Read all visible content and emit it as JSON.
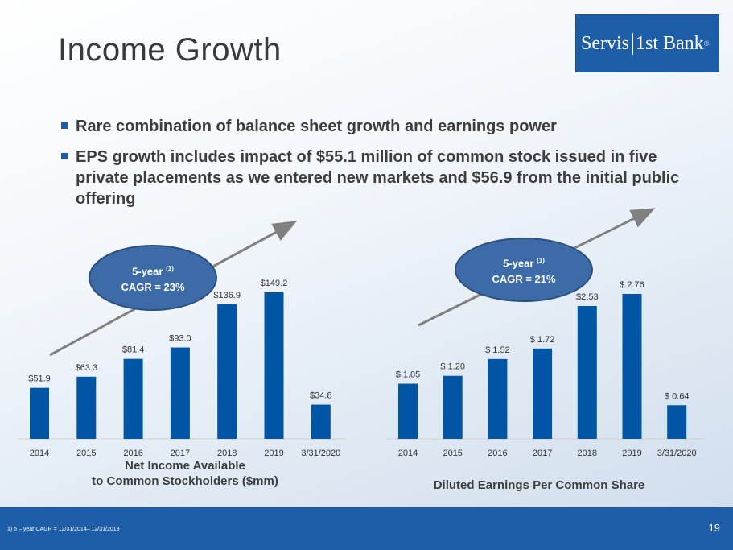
{
  "title": "Income Growth",
  "logo": {
    "part1": "Servis",
    "part2": "1st Bank",
    "reg": "®"
  },
  "bullets": [
    "Rare combination of balance sheet growth and earnings power",
    "EPS growth includes impact of $55.1 million of common stock issued in five private placements as we entered new markets and $56.9 from the initial public offering"
  ],
  "colors": {
    "bar": "#0055a4",
    "accent": "#1e5da8",
    "arrow": "#808080",
    "ellipse": "#3d6ba8"
  },
  "chart_data": [
    {
      "type": "bar",
      "categories": [
        "2014",
        "2015",
        "2016",
        "2017",
        "2018",
        "2019",
        "3/31/2020"
      ],
      "values": [
        51.9,
        63.3,
        81.4,
        93.0,
        136.9,
        149.2,
        34.8
      ],
      "labels": [
        "$51.9",
        "$63.3",
        "$81.4",
        "$93.0",
        "$136.9",
        "$149.2",
        "$34.8"
      ],
      "title_line1": "Net Income Available",
      "title_line2": "to Common Stockholders ($mm)",
      "cagr_line1": "5-year",
      "cagr_sup": "(1)",
      "cagr_line2": "CAGR = 23%",
      "ylim": [
        0,
        149.2
      ]
    },
    {
      "type": "bar",
      "categories": [
        "2014",
        "2015",
        "2016",
        "2017",
        "2018",
        "2019",
        "3/31/2020"
      ],
      "values": [
        1.05,
        1.2,
        1.52,
        1.72,
        2.53,
        2.76,
        0.64
      ],
      "labels": [
        "$ 1.05",
        "$ 1.20",
        "$ 1.52",
        "$ 1.72",
        "$2.53",
        "$ 2.76",
        "$ 0.64"
      ],
      "title_line1": "Diluted Earnings Per Common Share",
      "cagr_line1": "5-year",
      "cagr_sup": "(1)",
      "cagr_line2": "CAGR = 21%",
      "ylim": [
        0,
        2.76
      ]
    }
  ],
  "footer": {
    "footnote": "1)      5 – year CAGR = 12/31/2014– 12/31/2019",
    "page_number": "19"
  }
}
